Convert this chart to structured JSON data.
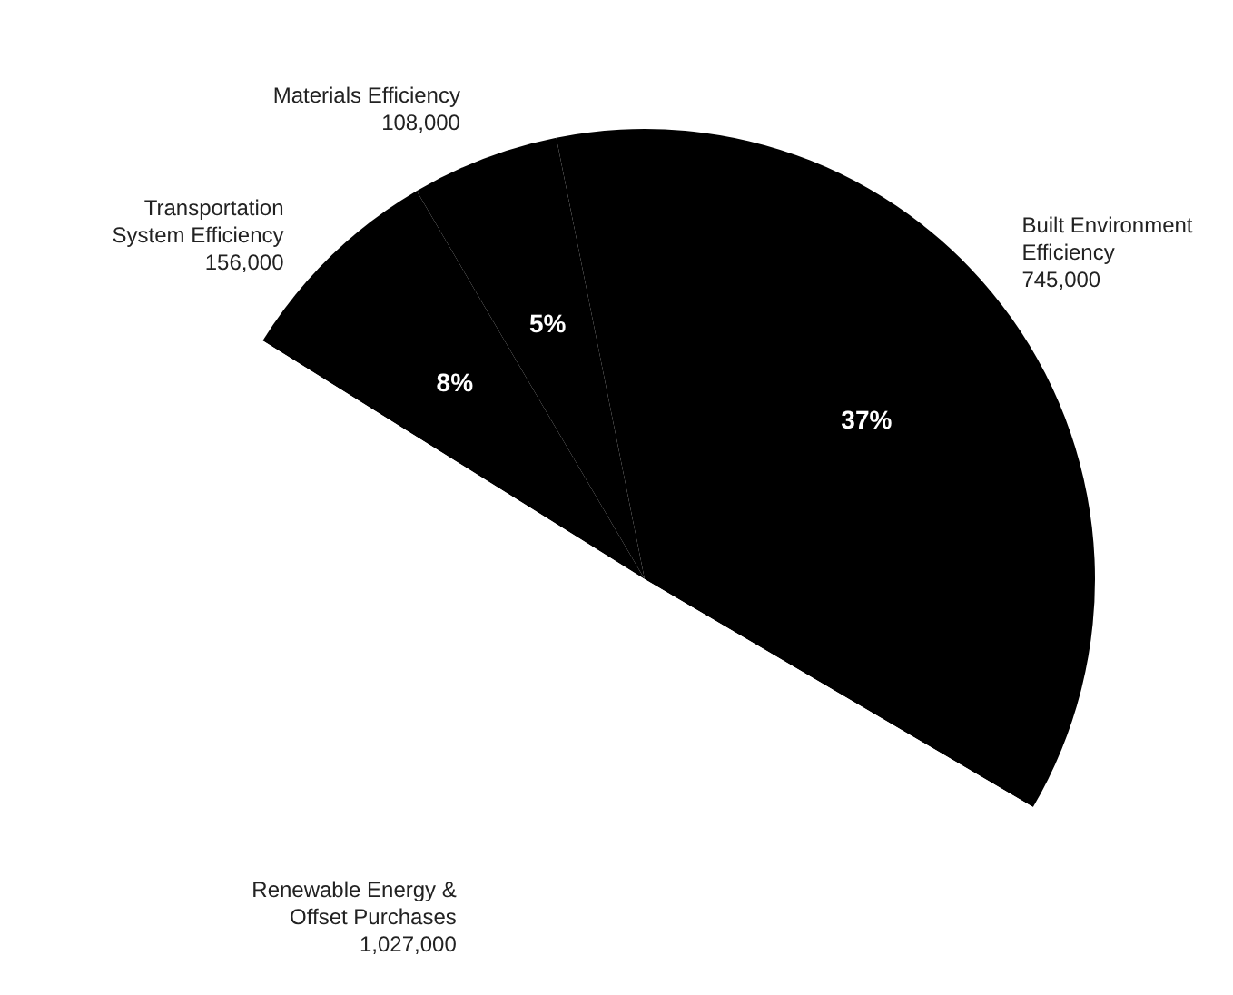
{
  "chart_data": {
    "type": "pie",
    "categories": [
      "Transportation System Efficiency",
      "Materials Efficiency",
      "Built Environment Efficiency",
      "Renewable Energy & Offset Purchases"
    ],
    "values": [
      156000,
      108000,
      745000,
      1027000
    ],
    "colors": [
      "#000000",
      "#000000",
      "#000000",
      "#ffffff"
    ],
    "value_labels": [
      "156,000",
      "108,000",
      "745,000",
      "1,027,000"
    ],
    "annotations": [
      {
        "text": "8%",
        "x": "Transportation System Efficiency"
      },
      {
        "text": "5%",
        "x": "Materials Efficiency"
      },
      {
        "text": "37%",
        "x": "Built Environment Efficiency"
      }
    ]
  }
}
